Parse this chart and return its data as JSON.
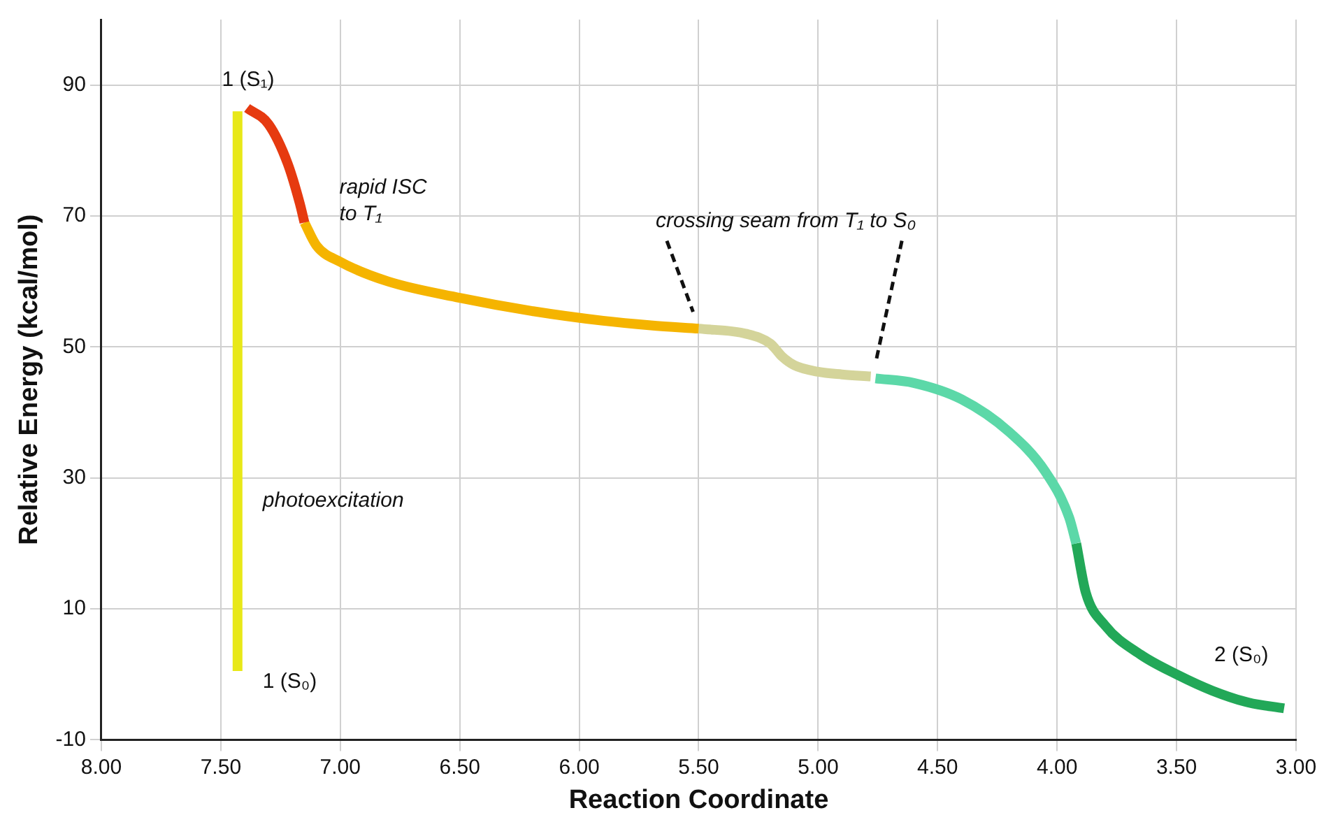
{
  "chart_data": {
    "type": "line",
    "xlabel": "Reaction Coordinate",
    "ylabel": "Relative Energy (kcal/mol)",
    "xlim": [
      8,
      3
    ],
    "xticks": [
      {
        "value": 8,
        "label": "8.00"
      },
      {
        "value": 7.5,
        "label": "7.50"
      },
      {
        "value": 7,
        "label": "7.00"
      },
      {
        "value": 6.5,
        "label": "6.50"
      },
      {
        "value": 6,
        "label": "6.00"
      },
      {
        "value": 5.5,
        "label": "5.50"
      },
      {
        "value": 5,
        "label": "5.00"
      },
      {
        "value": 4.5,
        "label": "4.50"
      },
      {
        "value": 4,
        "label": "4.00"
      },
      {
        "value": 3.5,
        "label": "3.50"
      },
      {
        "value": 3,
        "label": "3.00"
      }
    ],
    "ylim": [
      -10,
      100
    ],
    "yticks": [
      -10,
      10,
      30,
      50,
      70,
      90
    ],
    "grid": true,
    "legend": false,
    "marker": "none",
    "series": [
      {
        "color": "#e8e818",
        "x": [
          7.43,
          7.43
        ],
        "values": [
          0.5,
          86
        ]
      },
      {
        "color": "#e63a10",
        "x": [
          7.39,
          7.3,
          7.22,
          7.17,
          7.15
        ],
        "values": [
          86.5,
          84,
          78,
          72,
          69
        ]
      },
      {
        "color": "#f5b400",
        "x": [
          7.15,
          7.1,
          7.0,
          6.8,
          6.5,
          6.2,
          5.9,
          5.7,
          5.5
        ],
        "values": [
          69,
          65.5,
          63,
          60,
          57.5,
          55.5,
          54,
          53.3,
          52.8
        ]
      },
      {
        "color": "#d4d49a",
        "x": [
          5.5,
          5.3,
          5.2,
          5.15,
          5.1,
          5.0,
          4.9,
          4.78
        ],
        "values": [
          52.8,
          52,
          50.5,
          48.5,
          47.2,
          46.2,
          45.8,
          45.5
        ]
      },
      {
        "color": "#5cd8a8",
        "x": [
          4.76,
          4.6,
          4.4,
          4.2,
          4.05,
          3.95,
          3.92
        ],
        "values": [
          45.2,
          44.5,
          42,
          37,
          31,
          24,
          20
        ]
      },
      {
        "color": "#22a858",
        "x": [
          3.92,
          3.88,
          3.8,
          3.65,
          3.5,
          3.35,
          3.2,
          3.05
        ],
        "values": [
          20,
          12.5,
          7.5,
          3,
          0,
          -2.5,
          -4.3,
          -5.2
        ]
      }
    ],
    "annotations": [
      {
        "text": "1 (S₁)",
        "x": 7.39,
        "y": 86.5
      },
      {
        "text": "rapid ISC\nto T₁",
        "x": 7.15,
        "y": 69
      },
      "crossing seam from T₁ to S₀",
      {
        "text": "photoexcitation",
        "x": 7.43,
        "y": 26.5
      },
      {
        "text": "1 (S₀)",
        "x": 7.43,
        "y": 0.5
      },
      {
        "text": "2 (S₀)",
        "x": 3.05,
        "y": -5.2
      }
    ]
  }
}
